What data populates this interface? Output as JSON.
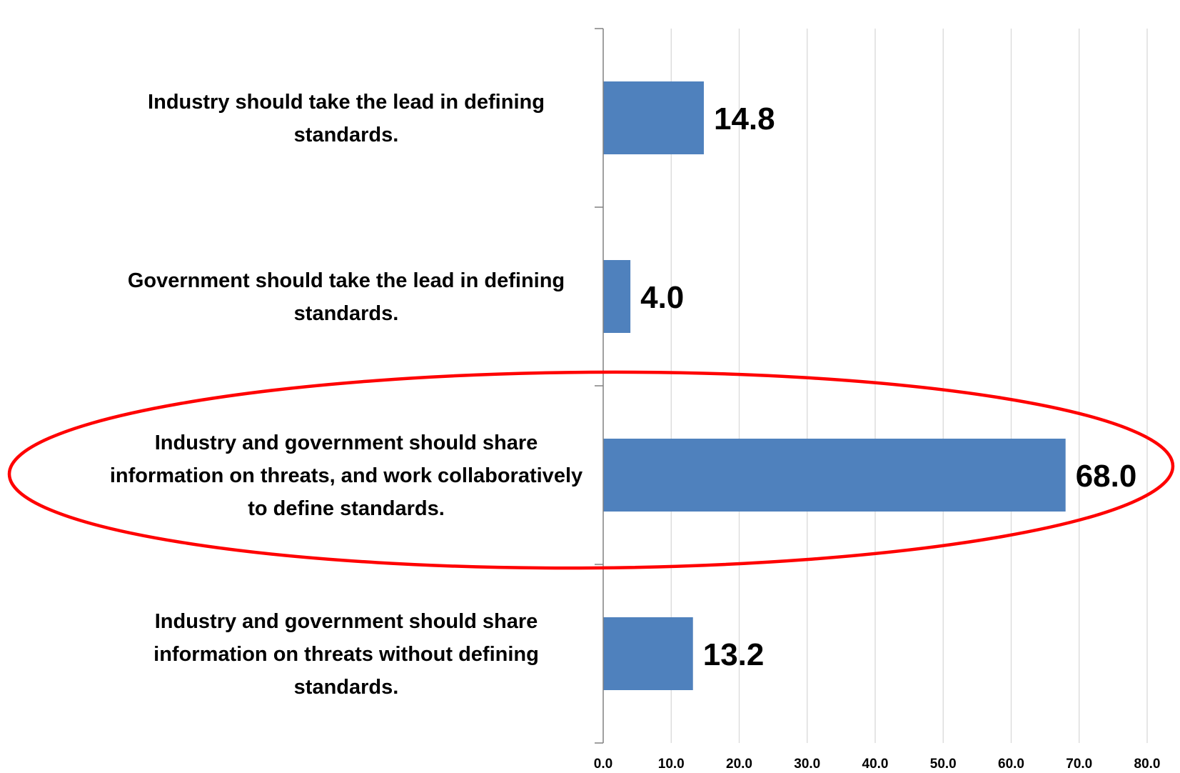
{
  "chart_data": {
    "type": "bar",
    "orientation": "horizontal",
    "categories": [
      [
        "Industry should  take  the lead in defining",
        "standards."
      ],
      [
        "Government should  take  the lead in defining",
        "standards."
      ],
      [
        "Industry and  government should share",
        "information on threats, and  work collaboratively",
        "to define standards."
      ],
      [
        "Industry and  government should share",
        "information on threats without  defining",
        "standards."
      ]
    ],
    "values": [
      14.8,
      4.0,
      68.0,
      13.2
    ],
    "value_labels": [
      "14.8",
      "4.0",
      "68.0",
      "13.2"
    ],
    "x_ticks": [
      "0.0",
      "10.0",
      "20.0",
      "30.0",
      "40.0",
      "50.0",
      "60.0",
      "70.0",
      "80.0"
    ],
    "xlim": [
      0,
      80
    ],
    "title": "",
    "xlabel": "",
    "ylabel": "",
    "grid": "vertical",
    "legend": "none",
    "highlighted_category_index": 2,
    "bar_color": "#4F81BD",
    "highlight_color": "#FF0000",
    "grid_color": "#D9D9D9",
    "axis_color": "#808080"
  }
}
